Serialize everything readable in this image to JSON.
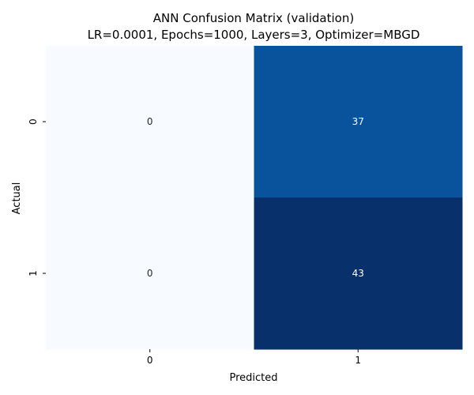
{
  "chart_data": {
    "type": "heatmap",
    "title": "ANN Confusion Matrix (validation)",
    "subtitle": "LR=0.0001, Epochs=1000, Layers=3, Optimizer=MBGD",
    "xlabel": "Predicted",
    "ylabel": "Actual",
    "x_categories": [
      "0",
      "1"
    ],
    "y_categories": [
      "0",
      "1"
    ],
    "values": [
      [
        0,
        37
      ],
      [
        0,
        43
      ]
    ],
    "colormap": "Blues",
    "color_range": [
      0,
      43
    ],
    "colors": {
      "low": "#f7fbff",
      "mid": "#08539c",
      "high": "#08306b",
      "annotation_dark": "#262626",
      "annotation_light": "#ffffff"
    },
    "grid": false,
    "colorbar": false
  }
}
